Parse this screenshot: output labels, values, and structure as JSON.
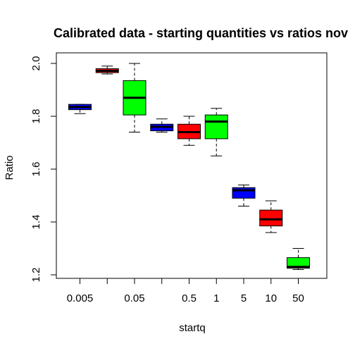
{
  "chart_data": {
    "type": "boxplot",
    "title": "Calibrated data - starting quantities vs ratios nov",
    "xlabel": "startq",
    "ylabel": "Ratio",
    "ylim": [
      1.2,
      2.0
    ],
    "yticks": [
      "1.2",
      "1.4",
      "1.6",
      "1.8",
      "2.0"
    ],
    "x_tick_labels": [
      "0.005",
      "",
      "0.05",
      "",
      "0.5",
      "1",
      "5",
      "10",
      "50"
    ],
    "colors": {
      "blue": "#0000ff",
      "red": "#ff0000",
      "green": "#00ff00"
    },
    "boxes": [
      {
        "min": 1.81,
        "q1": 1.825,
        "median": 1.835,
        "q3": 1.845,
        "max": 1.845,
        "color": "blue"
      },
      {
        "min": 1.96,
        "q1": 1.965,
        "median": 1.972,
        "q3": 1.98,
        "max": 1.99,
        "color": "red"
      },
      {
        "min": 1.74,
        "q1": 1.805,
        "median": 1.87,
        "q3": 1.935,
        "max": 2.0,
        "color": "green"
      },
      {
        "min": 1.74,
        "q1": 1.745,
        "median": 1.76,
        "q3": 1.77,
        "max": 1.79,
        "color": "blue"
      },
      {
        "min": 1.69,
        "q1": 1.715,
        "median": 1.74,
        "q3": 1.77,
        "max": 1.8,
        "color": "red"
      },
      {
        "min": 1.65,
        "q1": 1.715,
        "median": 1.78,
        "q3": 1.805,
        "max": 1.83,
        "color": "green"
      },
      {
        "min": 1.46,
        "q1": 1.49,
        "median": 1.52,
        "q3": 1.53,
        "max": 1.54,
        "color": "blue"
      },
      {
        "min": 1.36,
        "q1": 1.385,
        "median": 1.41,
        "q3": 1.445,
        "max": 1.48,
        "color": "red"
      },
      {
        "min": 1.22,
        "q1": 1.225,
        "median": 1.23,
        "q3": 1.265,
        "max": 1.3,
        "color": "green"
      }
    ]
  }
}
